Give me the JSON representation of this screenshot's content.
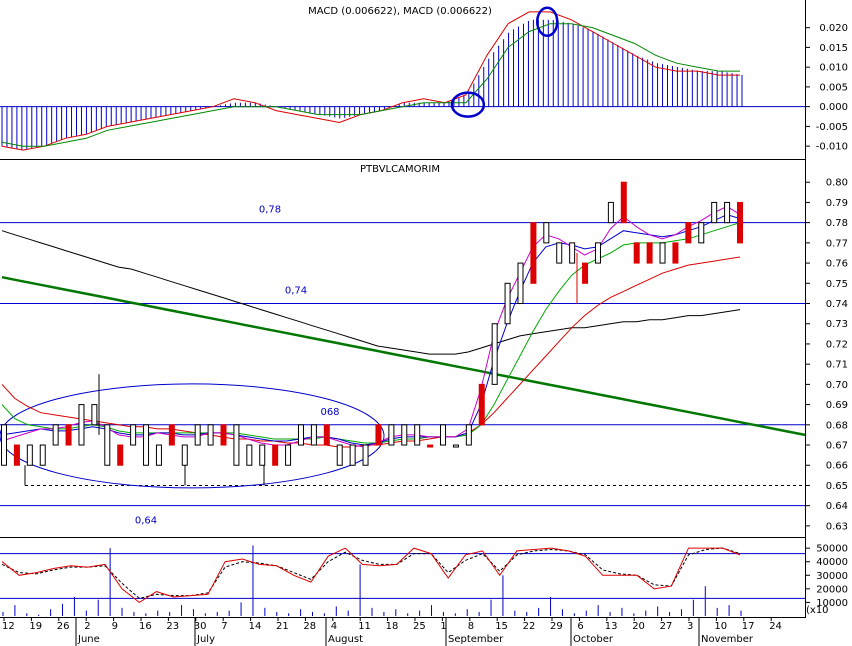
{
  "chart_data": [
    {
      "type": "line",
      "title": "MACD (0.006622), MACD (0.006622)",
      "ylim": [
        -0.013,
        0.027
      ],
      "y_ticks": [
        "0.020",
        "0.015",
        "0.010",
        "0.005",
        "0.000",
        "-0.005",
        "-0.010"
      ],
      "annotations": [
        "circle at MACD zero-line crossover (early September)",
        "circle at MACD peak (early October)"
      ],
      "series": [
        {
          "values": [
            -0.01,
            -0.011,
            -0.01,
            -0.008,
            -0.007,
            -0.005,
            -0.004,
            -0.003,
            -0.002,
            -0.001,
            0.0,
            0.002,
            0.001,
            -0.001,
            -0.002,
            -0.003,
            -0.004,
            -0.002,
            -0.001,
            0.001,
            0.002,
            0.001,
            0.003,
            0.013,
            0.021,
            0.024,
            0.024,
            0.022,
            0.019,
            0.016,
            0.013,
            0.01,
            0.009,
            0.009,
            0.008,
            0.008
          ],
          "color": "#dd0000"
        },
        {
          "values": [
            -0.009,
            -0.01,
            -0.01,
            -0.009,
            -0.008,
            -0.006,
            -0.005,
            -0.004,
            -0.003,
            -0.002,
            -0.001,
            0.0,
            0.0,
            0.0,
            -0.001,
            -0.002,
            -0.002,
            -0.002,
            -0.001,
            0.0,
            0.001,
            0.001,
            0.001,
            0.007,
            0.015,
            0.019,
            0.021,
            0.021,
            0.02,
            0.018,
            0.016,
            0.013,
            0.011,
            0.01,
            0.009,
            0.009
          ],
          "color": "#008800"
        },
        {
          "values": [
            -0.01,
            -0.011,
            -0.01,
            -0.008,
            -0.007,
            -0.005,
            -0.004,
            -0.003,
            -0.002,
            -0.001,
            0.0,
            0.001,
            0.001,
            0.0,
            -0.001,
            -0.002,
            -0.003,
            -0.002,
            -0.001,
            0.001,
            0.001,
            0.001,
            0.003,
            0.012,
            0.019,
            0.022,
            0.022,
            0.021,
            0.019,
            0.016,
            0.013,
            0.011,
            0.01,
            0.009,
            0.009,
            0.008
          ],
          "color": "#0000cc"
        }
      ]
    },
    {
      "type": "bar",
      "title": "PTBVLCAMORIM",
      "ylim": [
        0.625,
        0.81
      ],
      "y_ticks": [
        "0.80",
        "0.79",
        "0.78",
        "0.77",
        "0.76",
        "0.75",
        "0.74",
        "0.73",
        "0.72",
        "0.71",
        "0.70",
        "0.69",
        "0.68",
        "0.67",
        "0.66",
        "0.65",
        "0.64",
        "0.63"
      ],
      "horizontal_levels": [
        {
          "value": 0.78,
          "label": "0,78"
        },
        {
          "value": 0.74,
          "label": "0,74"
        },
        {
          "value": 0.68,
          "label": "068"
        },
        {
          "value": 0.64,
          "label": "0,64"
        }
      ],
      "dashed_level": 0.65,
      "annotations": [
        "ellipse around June–August consolidation zone (0.65–0.69)"
      ],
      "candles": [
        [
          0.68,
          0.66
        ],
        [
          0.67,
          0.66
        ],
        [
          0.67,
          0.66
        ],
        [
          0.67,
          0.66
        ],
        [
          0.68,
          0.67
        ],
        [
          0.68,
          0.67
        ],
        [
          0.69,
          0.67
        ],
        [
          0.69,
          0.68
        ],
        [
          0.68,
          0.66
        ],
        [
          0.67,
          0.66
        ],
        [
          0.68,
          0.67
        ],
        [
          0.68,
          0.66
        ],
        [
          0.67,
          0.66
        ],
        [
          0.68,
          0.67
        ],
        [
          0.67,
          0.66
        ],
        [
          0.68,
          0.67
        ],
        [
          0.68,
          0.67
        ],
        [
          0.68,
          0.67
        ],
        [
          0.68,
          0.66
        ],
        [
          0.67,
          0.66
        ],
        [
          0.67,
          0.66
        ],
        [
          0.67,
          0.66
        ],
        [
          0.67,
          0.66
        ],
        [
          0.68,
          0.67
        ],
        [
          0.68,
          0.67
        ],
        [
          0.68,
          0.67
        ],
        [
          0.67,
          0.66
        ],
        [
          0.67,
          0.66
        ],
        [
          0.67,
          0.66
        ],
        [
          0.68,
          0.67
        ],
        [
          0.68,
          0.67
        ],
        [
          0.68,
          0.67
        ],
        [
          0.68,
          0.67
        ],
        [
          0.67,
          0.67
        ],
        [
          0.68,
          0.67
        ],
        [
          0.67,
          0.67
        ],
        [
          0.68,
          0.67
        ],
        [
          0.7,
          0.68
        ],
        [
          0.73,
          0.7
        ],
        [
          0.75,
          0.73
        ],
        [
          0.76,
          0.74
        ],
        [
          0.78,
          0.75
        ],
        [
          0.78,
          0.77
        ],
        [
          0.77,
          0.76
        ],
        [
          0.77,
          0.76
        ],
        [
          0.76,
          0.75
        ],
        [
          0.77,
          0.76
        ],
        [
          0.79,
          0.78
        ],
        [
          0.8,
          0.78
        ],
        [
          0.77,
          0.76
        ],
        [
          0.77,
          0.76
        ],
        [
          0.77,
          0.76
        ],
        [
          0.77,
          0.76
        ],
        [
          0.78,
          0.77
        ],
        [
          0.78,
          0.77
        ],
        [
          0.79,
          0.78
        ],
        [
          0.79,
          0.78
        ],
        [
          0.79,
          0.77
        ]
      ],
      "series": [
        {
          "values": [
            0.7,
            0.693,
            0.689,
            0.686,
            0.685,
            0.684,
            0.683,
            0.682,
            0.681,
            0.68,
            0.679,
            0.679,
            0.678,
            0.678,
            0.677,
            0.676,
            0.675,
            0.674,
            0.673,
            0.673,
            0.672,
            0.672,
            0.671,
            0.671,
            0.67,
            0.67,
            0.669,
            0.669,
            0.67,
            0.67,
            0.671,
            0.672,
            0.672,
            0.673,
            0.674,
            0.674,
            0.676,
            0.68,
            0.686,
            0.693,
            0.7,
            0.707,
            0.714,
            0.721,
            0.728,
            0.734,
            0.739,
            0.743,
            0.746,
            0.749,
            0.752,
            0.755,
            0.757,
            0.759,
            0.76,
            0.761,
            0.762,
            0.763
          ],
          "color": "#dd0000"
        },
        {
          "values": [
            0.776,
            0.774,
            0.772,
            0.77,
            0.768,
            0.766,
            0.764,
            0.762,
            0.76,
            0.758,
            0.757,
            0.755,
            0.753,
            0.751,
            0.749,
            0.747,
            0.745,
            0.743,
            0.741,
            0.739,
            0.737,
            0.735,
            0.733,
            0.731,
            0.729,
            0.727,
            0.725,
            0.723,
            0.721,
            0.719,
            0.718,
            0.717,
            0.716,
            0.715,
            0.715,
            0.715,
            0.716,
            0.718,
            0.72,
            0.722,
            0.724,
            0.725,
            0.726,
            0.727,
            0.728,
            0.728,
            0.729,
            0.73,
            0.731,
            0.731,
            0.732,
            0.732,
            0.733,
            0.734,
            0.734,
            0.735,
            0.736,
            0.737
          ],
          "color": "#000000"
        },
        {
          "values": [
            0.753,
            0.751,
            0.749,
            0.747,
            0.745,
            0.743,
            0.741,
            0.739,
            0.737,
            0.735,
            0.733,
            0.731,
            0.729,
            0.727,
            0.725,
            0.723,
            0.721,
            0.719,
            0.717,
            0.715,
            0.713,
            0.711,
            0.709,
            0.707,
            0.705,
            0.703,
            0.701,
            0.699,
            0.697,
            0.695,
            0.693,
            0.691,
            0.689,
            0.687,
            0.685,
            0.683,
            0.681,
            0.679,
            0.677,
            0.675
          ],
          "color": "#007700"
        },
        {
          "values": [
            0.69,
            0.683,
            0.68,
            0.679,
            0.678,
            0.678,
            0.679,
            0.68,
            0.679,
            0.677,
            0.676,
            0.676,
            0.676,
            0.676,
            0.676,
            0.676,
            0.676,
            0.676,
            0.676,
            0.675,
            0.674,
            0.673,
            0.673,
            0.673,
            0.673,
            0.674,
            0.673,
            0.672,
            0.671,
            0.671,
            0.672,
            0.673,
            0.673,
            0.674,
            0.674,
            0.674,
            0.675,
            0.68,
            0.69,
            0.702,
            0.714,
            0.726,
            0.737,
            0.746,
            0.754,
            0.759,
            0.762,
            0.765,
            0.769,
            0.77,
            0.77,
            0.77,
            0.771,
            0.772,
            0.774,
            0.776,
            0.778,
            0.78
          ],
          "color": "#00aa00"
        },
        {
          "values": [
            0.675,
            0.676,
            0.677,
            0.678,
            0.677,
            0.677,
            0.678,
            0.679,
            0.678,
            0.676,
            0.675,
            0.675,
            0.676,
            0.676,
            0.675,
            0.675,
            0.676,
            0.676,
            0.675,
            0.674,
            0.673,
            0.672,
            0.672,
            0.673,
            0.674,
            0.674,
            0.673,
            0.671,
            0.67,
            0.671,
            0.673,
            0.674,
            0.674,
            0.674,
            0.674,
            0.674,
            0.676,
            0.69,
            0.712,
            0.73,
            0.746,
            0.76,
            0.768,
            0.77,
            0.769,
            0.767,
            0.768,
            0.772,
            0.776,
            0.775,
            0.774,
            0.773,
            0.774,
            0.776,
            0.778,
            0.781,
            0.784,
            0.782
          ],
          "color": "#0000cc"
        },
        {
          "values": [
            0.672,
            0.674,
            0.676,
            0.678,
            0.678,
            0.679,
            0.681,
            0.682,
            0.679,
            0.675,
            0.674,
            0.674,
            0.676,
            0.675,
            0.674,
            0.674,
            0.676,
            0.676,
            0.675,
            0.673,
            0.671,
            0.67,
            0.67,
            0.672,
            0.674,
            0.674,
            0.672,
            0.67,
            0.669,
            0.671,
            0.674,
            0.675,
            0.675,
            0.674,
            0.674,
            0.674,
            0.678,
            0.698,
            0.725,
            0.742,
            0.755,
            0.768,
            0.774,
            0.772,
            0.768,
            0.764,
            0.767,
            0.777,
            0.783,
            0.778,
            0.774,
            0.772,
            0.774,
            0.778,
            0.781,
            0.785,
            0.788,
            0.784
          ],
          "color": "#cc00cc"
        }
      ]
    },
    {
      "type": "bar",
      "title": "",
      "ylim": [
        0,
        56000
      ],
      "y_ticks": [
        "50000",
        "40000",
        "30000",
        "20000",
        "10000"
      ],
      "oscillator_levels": [
        46000,
        13000
      ],
      "series": [
        {
          "values": [
            40000,
            30000,
            32000,
            35000,
            37000,
            36000,
            38000,
            20000,
            10000,
            18000,
            14000,
            15000,
            16000,
            40000,
            42000,
            38000,
            37000,
            30000,
            25000,
            44000,
            50000,
            38000,
            37000,
            38000,
            50000,
            46000,
            28000,
            45000,
            48000,
            30000,
            48000,
            49000,
            50000,
            48000,
            44000,
            30000,
            30000,
            30000,
            20000,
            22000,
            50000,
            50000,
            50000,
            45000
          ],
          "color": "#dd0000"
        },
        {
          "values": [
            38000,
            32000,
            31000,
            34000,
            36000,
            36000,
            37000,
            24000,
            13000,
            16000,
            15000,
            15000,
            17000,
            36000,
            40000,
            39000,
            37000,
            32000,
            27000,
            40000,
            47000,
            41000,
            38000,
            38000,
            46000,
            46000,
            32000,
            41000,
            46000,
            33000,
            45000,
            48000,
            49000,
            48000,
            45000,
            34000,
            31000,
            30000,
            23000,
            22000,
            45000,
            49000,
            50000,
            46000
          ],
          "color": "#000000"
        }
      ],
      "volume": [
        3000,
        8000,
        2000,
        1000,
        5000,
        9000,
        14000,
        4000,
        12000,
        50000,
        6000,
        3000,
        2000,
        4000,
        3000,
        8000,
        5000,
        2000,
        3000,
        4000,
        10000,
        52000,
        6000,
        3000,
        2000,
        5000,
        3000,
        2000,
        7000,
        4000,
        38000,
        6000,
        3000,
        5000,
        2000,
        4000,
        8000,
        3000,
        2000,
        5000,
        3000,
        12000,
        30000,
        4000,
        3000,
        6000,
        14000,
        5000,
        2000,
        4000,
        8000,
        3000,
        6000,
        2000,
        4000,
        7000,
        3000,
        5000,
        12000,
        22000,
        6000,
        8000,
        4000
      ]
    }
  ],
  "x_axis": {
    "day_ticks": [
      "12",
      "19",
      "26",
      "2",
      "9",
      "16",
      "23",
      "30",
      "7",
      "14",
      "21",
      "28",
      "4",
      "11",
      "18",
      "25",
      "1",
      "8",
      "15",
      "22",
      "29",
      "6",
      "13",
      "20",
      "27",
      "3",
      "10",
      "17",
      "24"
    ],
    "month_labels": [
      "June",
      "July",
      "August",
      "September",
      "October",
      "November"
    ]
  },
  "axis_corner_label": "(x10",
  "colors": {
    "axis": "#000080",
    "grid_level": "#0000cc",
    "up_candle": "#000000",
    "down_candle": "#dd0000",
    "trend_line": "#007700",
    "circle_annotation": "#0000cc"
  }
}
